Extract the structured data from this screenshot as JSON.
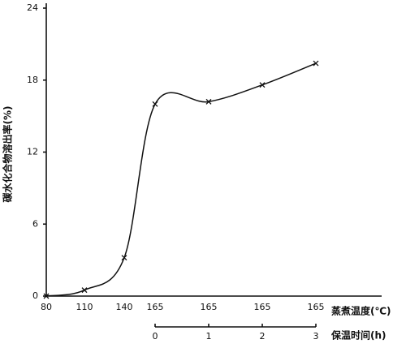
{
  "chart_data": {
    "type": "line",
    "y_label": "碳水化合物溶出率(%)",
    "x_label": "蒸煮温度(℃)",
    "categories": [
      "80",
      "110",
      "140",
      "165",
      "165",
      "165",
      "165"
    ],
    "series": [
      {
        "name": "碳水化合物溶出率",
        "color": "#111111",
        "values": [
          0,
          0.5,
          3.2,
          16,
          16.2,
          17.6,
          19.4
        ]
      }
    ],
    "ylim": [
      0,
      24
    ],
    "yticks": [
      0,
      6,
      12,
      18,
      24
    ],
    "x2_label": "保温时间(h)",
    "x2lim": [
      0,
      3
    ],
    "x2ticks": [
      0,
      1,
      2,
      3
    ],
    "grid": false
  }
}
